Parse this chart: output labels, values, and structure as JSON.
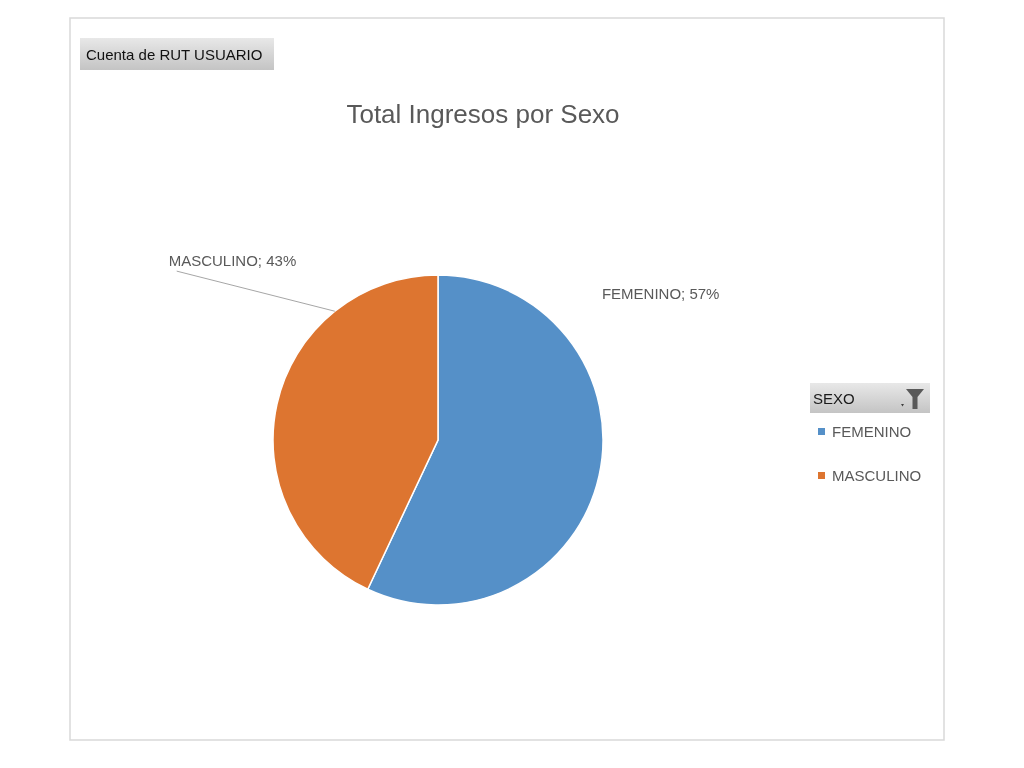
{
  "chart_data": {
    "type": "pie",
    "title": "Total Ingresos por Sexo",
    "annotations": [
      "Cuenta de RUT USUARIO"
    ],
    "legend_title": "SEXO",
    "legend": "right",
    "categories": [
      "FEMENINO",
      "MASCULINO"
    ],
    "values": [
      57,
      43
    ],
    "colors": [
      "#5590c8",
      "#dd7530"
    ],
    "value_labels": [
      "FEMENINO; 57%",
      "MASCULINO; 43%"
    ]
  }
}
